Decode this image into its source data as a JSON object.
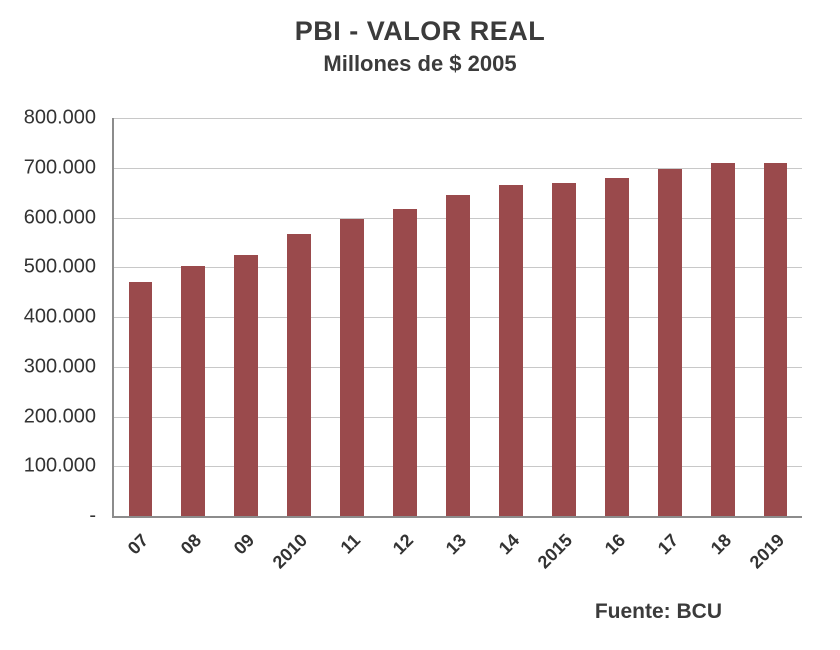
{
  "chart_data": {
    "type": "bar",
    "title": "PBI - VALOR REAL",
    "subtitle": "Millones de $ 2005",
    "categories": [
      "07",
      "08",
      "09",
      "2010",
      "11",
      "12",
      "13",
      "14",
      "2015",
      "16",
      "17",
      "18",
      "2019"
    ],
    "values": [
      470000,
      503000,
      525000,
      566000,
      597000,
      617000,
      645000,
      666000,
      670000,
      679000,
      698000,
      710000,
      710000
    ],
    "xlabel": "",
    "ylabel": "",
    "ylim": [
      0,
      800000
    ],
    "y_ticks": [
      {
        "value": 800000,
        "label": "800.000"
      },
      {
        "value": 700000,
        "label": "700.000"
      },
      {
        "value": 600000,
        "label": "600.000"
      },
      {
        "value": 500000,
        "label": "500.000"
      },
      {
        "value": 400000,
        "label": "400.000"
      },
      {
        "value": 300000,
        "label": "300.000"
      },
      {
        "value": 200000,
        "label": "200.000"
      },
      {
        "value": 100000,
        "label": "100.000"
      },
      {
        "value": 0,
        "label": "-"
      }
    ],
    "grid": true,
    "legend": "none",
    "bar_color": "#9a4a4c",
    "source": "Fuente: BCU"
  }
}
